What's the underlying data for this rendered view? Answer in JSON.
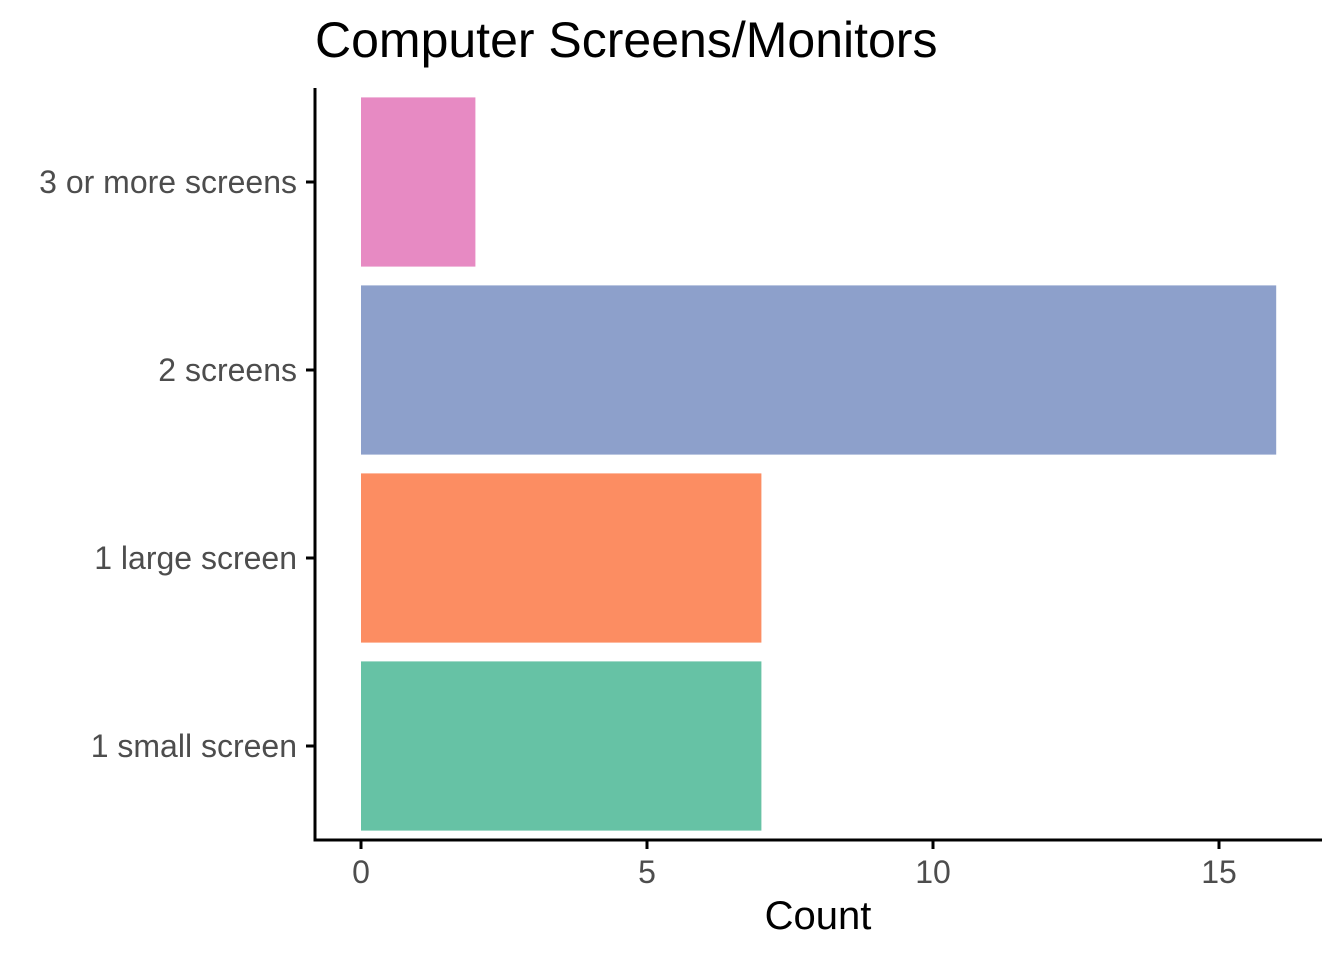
{
  "chart_data": {
    "type": "bar",
    "orientation": "horizontal",
    "title": "Computer Screens/Monitors",
    "xlabel": "Count",
    "ylabel": "",
    "categories": [
      "1 small screen",
      "1 large screen",
      "2 screens",
      "3 or more screens"
    ],
    "values": [
      7,
      7,
      16,
      2
    ],
    "colors": [
      "#66c2a5",
      "#fc8d62",
      "#8da0cb",
      "#e78ac3"
    ],
    "xlim": [
      0,
      17.6
    ],
    "xticks": [
      0,
      5,
      10,
      15
    ],
    "xtick_labels": [
      "0",
      "5",
      "10",
      "15"
    ],
    "grid": false,
    "legend": "none"
  }
}
